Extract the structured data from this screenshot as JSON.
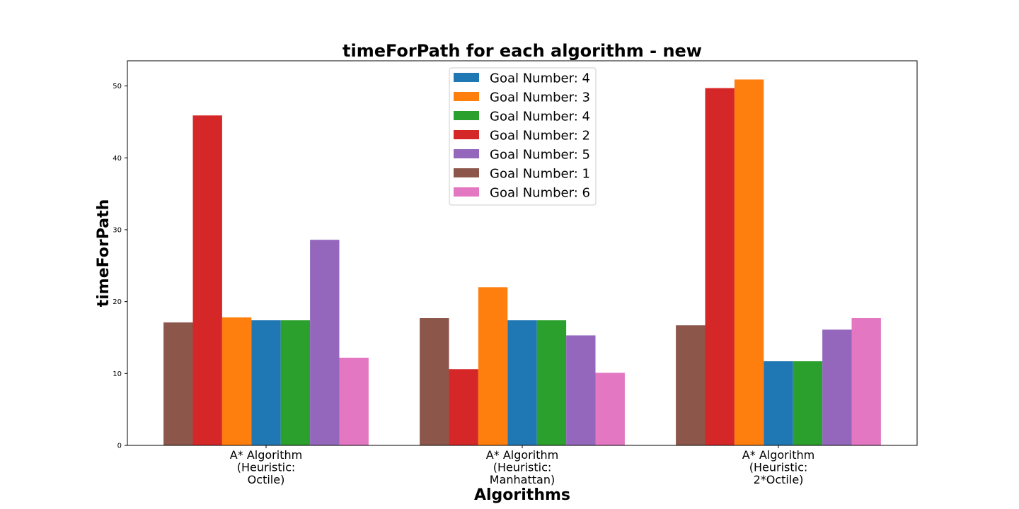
{
  "chart_data": {
    "type": "bar",
    "title": "timeForPath for each algorithm - new",
    "xlabel": "Algorithms",
    "ylabel": "timeForPath",
    "ylim": [
      0,
      53.5
    ],
    "yticks": [
      0,
      10,
      20,
      30,
      40,
      50
    ],
    "grid": false,
    "legend_position": "top-center",
    "categories": [
      [
        "A* Algorithm",
        "(Heuristic:",
        "Octile)"
      ],
      [
        "A* Algorithm",
        "(Heuristic:",
        "Manhattan)"
      ],
      [
        "A* Algorithm",
        "(Heuristic:",
        "2*Octile)"
      ]
    ],
    "series": [
      {
        "name": "Goal Number: 1",
        "color": "#8c564b",
        "values": [
          17.1,
          17.7,
          16.7
        ]
      },
      {
        "name": "Goal Number: 2",
        "color": "#d62728",
        "values": [
          45.9,
          10.6,
          49.7
        ]
      },
      {
        "name": "Goal Number: 3",
        "color": "#ff7f0e",
        "values": [
          17.8,
          22.0,
          50.9
        ]
      },
      {
        "name": "Goal Number: 4",
        "color": "#1f77b4",
        "values": [
          17.4,
          17.4,
          11.7
        ]
      },
      {
        "name": "Goal Number: 4",
        "color": "#2ca02c",
        "values": [
          17.4,
          17.4,
          11.7
        ]
      },
      {
        "name": "Goal Number: 5",
        "color": "#9467bd",
        "values": [
          28.6,
          15.3,
          16.1
        ]
      },
      {
        "name": "Goal Number: 6",
        "color": "#e377c2",
        "values": [
          12.2,
          10.1,
          17.7
        ]
      }
    ],
    "legend_order": [
      3,
      2,
      4,
      1,
      5,
      0,
      6
    ]
  }
}
